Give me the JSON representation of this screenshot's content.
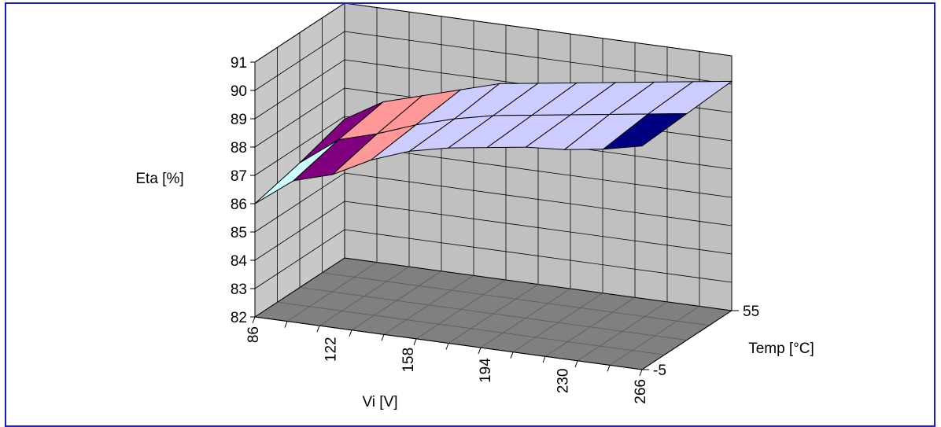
{
  "chart_data": {
    "type": "surface",
    "title": "",
    "zlabel": "Eta [%]",
    "xlabel": "Vi [V]",
    "ylabel": "Temp [°C]",
    "zlim": [
      82,
      91
    ],
    "z_ticks": [
      "82",
      "83",
      "84",
      "85",
      "86",
      "87",
      "88",
      "89",
      "90",
      "91"
    ],
    "x_tick_labels": [
      "86",
      "122",
      "158",
      "194",
      "230",
      "266"
    ],
    "y_tick_labels": [
      "-5",
      "55"
    ],
    "grid": true,
    "legend": "none",
    "x_values": [
      86,
      104,
      122,
      140,
      158,
      176,
      194,
      212,
      230,
      248,
      266
    ],
    "temps": [
      -5,
      25,
      55
    ],
    "series": [
      {
        "values": [
          86.0,
          87.0,
          87.4,
          88.1,
          88.6,
          88.9,
          89.1,
          89.3,
          89.4,
          89.6,
          89.9
        ]
      },
      {
        "values": [
          86.4,
          87.4,
          87.8,
          88.3,
          88.7,
          89.0,
          89.2,
          89.4,
          89.6,
          89.8,
          90.0
        ]
      },
      {
        "values": [
          86.9,
          87.7,
          88.1,
          88.5,
          88.9,
          89.1,
          89.3,
          89.5,
          89.7,
          89.9,
          90.1
        ]
      }
    ],
    "colors": {
      "back_wall": "#c0c0c0",
      "side_wall": "#c8c8c8",
      "floor": "#808080",
      "low_band": "#ccffff",
      "mid_band": "#800080",
      "high_band": "#ff9999",
      "plateau": "#ccccff",
      "accent": "#000080"
    }
  }
}
